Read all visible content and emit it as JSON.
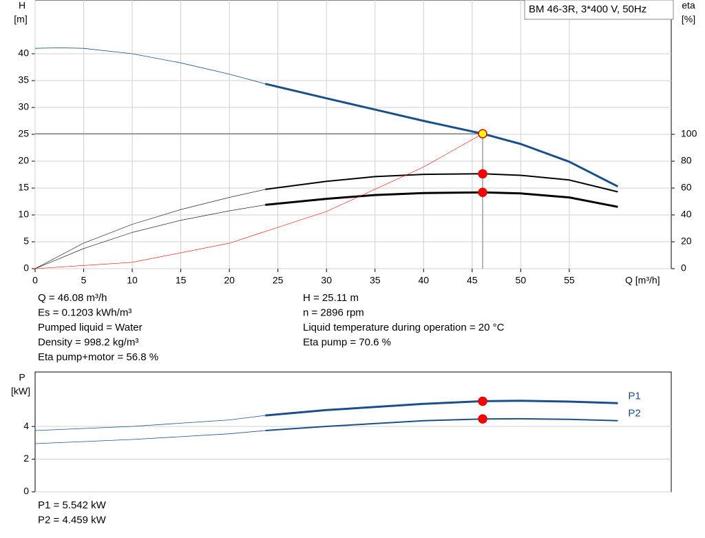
{
  "chart_data": [
    {
      "type": "line",
      "title": "BM 46-3R, 3*400 V, 50Hz",
      "y_label": "H",
      "y_unit": "[m]",
      "y2_label": "eta",
      "y2_unit": "[%]",
      "x_label": "Q [m³/h]",
      "xlim": [
        0,
        65.5
      ],
      "xticks": [
        0,
        5,
        10,
        15,
        20,
        25,
        30,
        35,
        40,
        45,
        50,
        55
      ],
      "ylim": [
        0,
        50
      ],
      "yticks": [
        0,
        5,
        10,
        15,
        20,
        25,
        30,
        35,
        40
      ],
      "y2lim": [
        0,
        200
      ],
      "y2ticks": [
        0,
        20,
        40,
        60,
        80,
        100
      ],
      "grid": true,
      "series": [
        {
          "color": "#1a4f8a",
          "width": 0.8,
          "x": [
            0,
            2.5,
            5,
            10,
            15,
            20,
            23.7
          ],
          "values": [
            41,
            41.1,
            41,
            40,
            38.3,
            36.2,
            34.4
          ]
        },
        {
          "color": "#1a4f8a",
          "width": 3,
          "x": [
            23.7,
            30,
            35,
            40,
            46.08,
            50,
            55,
            60
          ],
          "values": [
            34.4,
            31.7,
            29.6,
            27.5,
            25.11,
            23.2,
            19.9,
            15.3
          ]
        },
        {
          "color": "#000000",
          "width": 0.6,
          "axis": "y2",
          "x": [
            0,
            5,
            10,
            15,
            20,
            23.7
          ],
          "values": [
            0,
            19,
            33,
            44,
            53,
            59
          ]
        },
        {
          "color": "#000000",
          "width": 2,
          "axis": "y2",
          "x": [
            23.7,
            30,
            35,
            40,
            46.08,
            50,
            55,
            60
          ],
          "values": [
            59,
            65,
            68.5,
            70.2,
            70.6,
            69.5,
            66,
            57.2
          ]
        },
        {
          "color": "#000000",
          "width": 0.6,
          "axis": "y2",
          "x": [
            0,
            5,
            10,
            15,
            20,
            23.7
          ],
          "values": [
            0,
            15,
            27,
            36,
            43,
            47.5
          ]
        },
        {
          "color": "#000000",
          "width": 3,
          "axis": "y2",
          "x": [
            23.7,
            30,
            35,
            40,
            46.08,
            50,
            55,
            60
          ],
          "values": [
            47.5,
            52,
            54.8,
            56.3,
            56.8,
            56,
            53,
            46
          ]
        },
        {
          "color": "#ff0000",
          "width": 0.6,
          "x": [
            0,
            10,
            20,
            30,
            40,
            46.08
          ],
          "values": [
            0,
            1.18,
            4.73,
            10.64,
            18.92,
            25.11
          ]
        }
      ],
      "points": [
        {
          "x": 46.08,
          "y": 25.11,
          "color": "#ffff00"
        },
        {
          "x": 46.08,
          "y": 70.6,
          "axis": "y2",
          "color": "#ff0000"
        },
        {
          "x": 46.08,
          "y": 56.8,
          "axis": "y2",
          "color": "#ff0000"
        }
      ],
      "guides": true,
      "info_left": [
        "Q = 46.08 m³/h",
        "Es = 0.1203 kWh/m³",
        "Pumped liquid = Water",
        "Density = 998.2 kg/m³",
        "Eta pump+motor = 56.8 %"
      ],
      "info_right": [
        "H = 25.11 m",
        "n = 2896 rpm",
        "Liquid temperature during operation = 20 °C",
        "Eta pump = 70.6 %"
      ]
    },
    {
      "type": "line",
      "y_label": "P",
      "y_unit": "[kW]",
      "xlim": [
        0,
        65.5
      ],
      "ylim": [
        0,
        7.33
      ],
      "yticks": [
        0,
        2,
        4
      ],
      "grid": true,
      "series": [
        {
          "color": "#1a4f8a",
          "width": 0.8,
          "x": [
            0,
            10,
            20,
            23.7
          ],
          "values": [
            3.75,
            4.0,
            4.4,
            4.67
          ]
        },
        {
          "name": "P1",
          "color": "#1a4f8a",
          "width": 3,
          "x": [
            23.7,
            30,
            40,
            46.08,
            50,
            55,
            60
          ],
          "values": [
            4.67,
            5.0,
            5.38,
            5.542,
            5.57,
            5.52,
            5.42
          ]
        },
        {
          "color": "#1a4f8a",
          "width": 0.8,
          "x": [
            0,
            10,
            20,
            23.7
          ],
          "values": [
            2.95,
            3.2,
            3.55,
            3.75
          ]
        },
        {
          "name": "P2",
          "color": "#1a4f8a",
          "width": 2,
          "x": [
            23.7,
            30,
            40,
            46.08,
            50,
            55,
            60
          ],
          "values": [
            3.75,
            4.0,
            4.35,
            4.459,
            4.47,
            4.43,
            4.35
          ]
        }
      ],
      "points": [
        {
          "x": 46.08,
          "y": 5.542,
          "color": "#ff0000"
        },
        {
          "x": 46.08,
          "y": 4.459,
          "color": "#ff0000"
        }
      ],
      "info_left": [
        "P1 = 5.542 kW",
        "P2 = 4.459 kW"
      ]
    }
  ]
}
